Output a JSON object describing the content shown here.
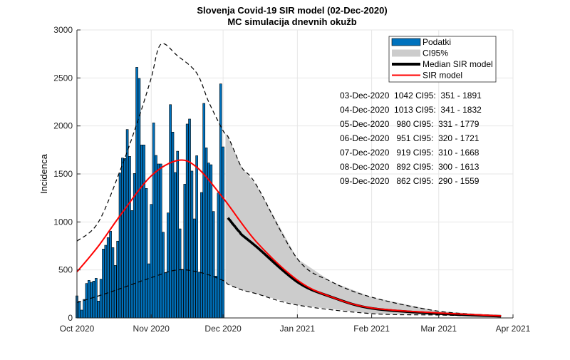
{
  "chart_data": {
    "type": "bar",
    "title": "Slovenja Covid-19 SIR model (02-Dec-2020)",
    "subtitle": "MC simulacija dnevnih okužb",
    "xlabel": "",
    "ylabel": "Incidenca",
    "xlim": [
      "2020-10-01",
      "2021-04-01"
    ],
    "ylim": [
      0,
      3000
    ],
    "yticks": [
      0,
      500,
      1000,
      1500,
      2000,
      2500,
      3000
    ],
    "xticks": [
      {
        "date": "2020-10-01",
        "label": "Oct 2020"
      },
      {
        "date": "2020-11-01",
        "label": "Nov 2020"
      },
      {
        "date": "2020-12-01",
        "label": "Dec 2020"
      },
      {
        "date": "2021-01-01",
        "label": "Jan 2021"
      },
      {
        "date": "2021-02-01",
        "label": "Feb 2021"
      },
      {
        "date": "2021-03-01",
        "label": "Mar 2021"
      },
      {
        "date": "2021-04-01",
        "label": "Apr 2021"
      }
    ],
    "grid": true,
    "legend_placement": "top-right",
    "colors": {
      "bars": "#0072BD",
      "ci": "#CCCCCC",
      "median": "#000000",
      "sir": "#FF0000"
    },
    "legend": [
      "Podatki",
      "CI95%",
      "Median SIR model",
      "SIR model"
    ],
    "bars": {
      "name": "Podatki",
      "start_date": "2020-10-01",
      "values": [
        230,
        173,
        82,
        193,
        359,
        391,
        371,
        384,
        413,
        176,
        404,
        718,
        757,
        837,
        904,
        733,
        547,
        800,
        1510,
        1666,
        1661,
        1963,
        1683,
        1119,
        1505,
        2611,
        2495,
        1802,
        1802,
        1349,
        564,
        1183,
        2032,
        1693,
        1604,
        1604,
        893,
        473,
        1094,
        2222,
        1936,
        1515,
        1737,
        928,
        507,
        1393,
        2020,
        2072,
        1530,
        1032,
        1690,
        478,
        1307,
        2235,
        1772,
        1614,
        1596,
        1109,
        436,
        1302,
        2438,
        1782
      ]
    },
    "sir_model": {
      "name": "SIR model",
      "x": [
        "2020-10-01",
        "2020-10-10",
        "2020-10-20",
        "2020-11-01",
        "2020-11-12",
        "2020-11-20",
        "2020-12-01",
        "2020-12-15",
        "2021-01-01",
        "2021-01-15",
        "2021-02-01",
        "2021-03-01",
        "2021-03-27"
      ],
      "y": [
        480,
        750,
        1100,
        1480,
        1640,
        1570,
        1250,
        790,
        394,
        220,
        104,
        52,
        22
      ]
    },
    "median_sir_model": {
      "name": "Median SIR model",
      "x": [
        "2020-12-03",
        "2020-12-04",
        "2020-12-05",
        "2020-12-06",
        "2020-12-07",
        "2020-12-08",
        "2020-12-09",
        "2020-12-15",
        "2021-01-01",
        "2021-01-15",
        "2021-02-01",
        "2021-03-01",
        "2021-03-27"
      ],
      "y": [
        1042,
        1013,
        980,
        951,
        919,
        892,
        862,
        740,
        375,
        220,
        100,
        45,
        18
      ]
    },
    "ci_upper": {
      "x": [
        "2020-10-01",
        "2020-10-10",
        "2020-10-20",
        "2020-10-27",
        "2020-11-01",
        "2020-11-05",
        "2020-11-12",
        "2020-11-20",
        "2020-11-25",
        "2020-12-01",
        "2020-12-03",
        "2020-12-06",
        "2020-12-09",
        "2020-12-15",
        "2021-01-01",
        "2021-01-15",
        "2021-02-01",
        "2021-03-01",
        "2021-03-27"
      ],
      "y": [
        800,
        1000,
        1600,
        2100,
        2500,
        2850,
        2730,
        2550,
        2250,
        1950,
        1891,
        1721,
        1559,
        1380,
        616,
        380,
        216,
        70,
        25
      ]
    },
    "ci_lower": {
      "x": [
        "2020-10-01",
        "2020-10-15",
        "2020-11-01",
        "2020-11-12",
        "2020-11-22",
        "2020-12-01",
        "2020-12-03",
        "2020-12-06",
        "2020-12-09",
        "2020-12-15",
        "2021-01-01",
        "2021-02-01",
        "2021-03-01",
        "2021-03-27"
      ],
      "y": [
        160,
        270,
        420,
        500,
        470,
        390,
        351,
        320,
        290,
        252,
        134,
        45,
        30,
        15
      ]
    },
    "ci_band_start": "2020-12-02",
    "annotations": [
      "03-Dec-2020  1042 CI95:  351 - 1891",
      "04-Dec-2020  1013 CI95:  341 - 1832",
      "05-Dec-2020   980 CI95:  331 - 1779",
      "06-Dec-2020   951 CI95:  320 - 1721",
      "07-Dec-2020   919 CI95:  310 - 1668",
      "08-Dec-2020   892 CI95:  300 - 1613",
      "09-Dec-2020   862 CI95:  290 - 1559"
    ]
  }
}
